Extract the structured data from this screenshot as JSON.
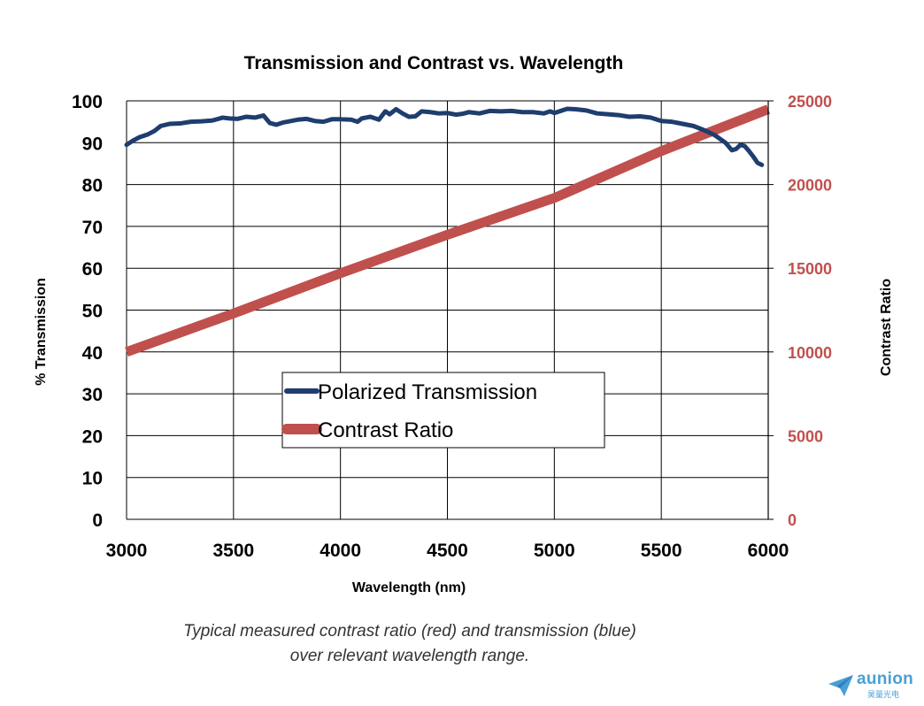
{
  "chart_data": {
    "type": "line",
    "title": "Transmission and Contrast vs. Wavelength",
    "xlabel": "Wavelength (nm)",
    "ylabel": "% Transmission",
    "y2label": "Contrast Ratio",
    "xlim": [
      3000,
      6000
    ],
    "ylim": [
      0,
      100
    ],
    "y2lim": [
      0,
      25000
    ],
    "xticks": [
      "3000",
      "3500",
      "4000",
      "4500",
      "5000",
      "5500",
      "6000"
    ],
    "yticks": [
      "0",
      "10",
      "20",
      "30",
      "40",
      "50",
      "60",
      "70",
      "80",
      "90",
      "100"
    ],
    "y2ticks": [
      "0",
      "5000",
      "10000",
      "15000",
      "20000",
      "25000"
    ],
    "grid": true,
    "legend_position": "center-left",
    "series": [
      {
        "name": "Polarized Transmission",
        "axis": "left",
        "color": "#1f3d6e",
        "x": [
          3000,
          3030,
          3060,
          3100,
          3130,
          3160,
          3200,
          3250,
          3300,
          3350,
          3400,
          3450,
          3480,
          3520,
          3560,
          3600,
          3640,
          3670,
          3700,
          3730,
          3760,
          3800,
          3840,
          3880,
          3920,
          3960,
          4000,
          4050,
          4080,
          4100,
          4140,
          4180,
          4210,
          4230,
          4260,
          4290,
          4320,
          4350,
          4380,
          4420,
          4460,
          4500,
          4540,
          4570,
          4600,
          4650,
          4700,
          4750,
          4800,
          4850,
          4900,
          4950,
          4980,
          5000,
          5030,
          5060,
          5100,
          5150,
          5200,
          5250,
          5300,
          5350,
          5400,
          5450,
          5500,
          5550,
          5600,
          5650,
          5700,
          5750,
          5800,
          5830,
          5850,
          5870,
          5890,
          5910,
          5930,
          5950,
          5970
        ],
        "values": [
          89.5,
          90.5,
          91.3,
          92,
          92.8,
          94,
          94.5,
          94.6,
          95,
          95.1,
          95.3,
          96,
          95.8,
          95.7,
          96.2,
          96,
          96.5,
          94.7,
          94.3,
          94.8,
          95.1,
          95.5,
          95.7,
          95.2,
          95,
          95.6,
          95.6,
          95.5,
          95,
          95.8,
          96.2,
          95.5,
          97.5,
          96.8,
          98,
          97,
          96.2,
          96.3,
          97.5,
          97.3,
          97,
          97.1,
          96.7,
          96.9,
          97.3,
          97,
          97.6,
          97.5,
          97.6,
          97.3,
          97.3,
          97,
          97.5,
          97.1,
          97.6,
          98.1,
          98,
          97.7,
          97,
          96.8,
          96.6,
          96.2,
          96.3,
          96,
          95.2,
          95,
          94.5,
          94,
          93,
          91.8,
          90,
          88.2,
          88.5,
          89.5,
          89.2,
          88,
          86.7,
          85.2,
          84.7
        ]
      },
      {
        "name": "Contrast Ratio",
        "axis": "right",
        "color": "#c0504d",
        "x": [
          3000,
          3500,
          4000,
          4500,
          5000,
          5500,
          6000
        ],
        "values": [
          10000,
          12300,
          14700,
          17000,
          19200,
          22000,
          24500
        ]
      }
    ]
  },
  "caption": {
    "line1": "Typical measured contrast ratio (red) and transmission (blue)",
    "line2": "over relevant wavelength range."
  },
  "logo": {
    "text": "aunion",
    "subtext": "昊量光电",
    "color": "#4a9fd6"
  }
}
